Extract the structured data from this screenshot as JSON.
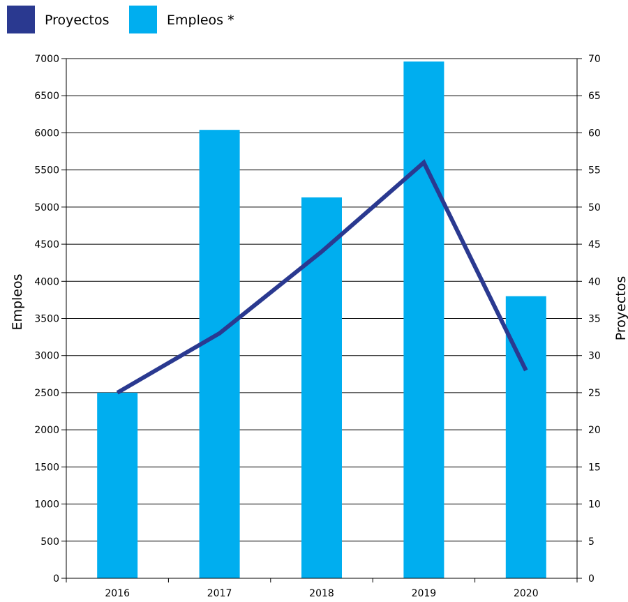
{
  "chart_data": {
    "type": "bar",
    "categories": [
      "2016",
      "2017",
      "2018",
      "2019",
      "2020"
    ],
    "series": [
      {
        "name": "Empleos *",
        "type": "bar",
        "axis": "left",
        "values": [
          2500,
          6040,
          5130,
          6960,
          3800
        ]
      },
      {
        "name": "Proyectos",
        "type": "line",
        "axis": "right",
        "values": [
          25,
          33,
          44,
          56,
          28
        ]
      }
    ],
    "legend": {
      "placement": "top-left",
      "items": [
        {
          "label": "Proyectos",
          "color": "#2a3990"
        },
        {
          "label": "Empleos *",
          "color": "#00aeef"
        }
      ]
    },
    "ylabel": "Empleos",
    "y2label": "Proyectos",
    "ylim": [
      0,
      7000
    ],
    "y2lim": [
      0,
      70
    ],
    "yticks": [
      "0",
      "500",
      "1000",
      "1500",
      "2000",
      "2500",
      "3000",
      "3500",
      "4000",
      "4500",
      "5000",
      "5500",
      "6000",
      "6500",
      "7000"
    ],
    "y2ticks": [
      "0",
      "5",
      "10",
      "15",
      "20",
      "25",
      "30",
      "35",
      "40",
      "45",
      "50",
      "55",
      "60",
      "65",
      "70"
    ],
    "grid": true,
    "colors": {
      "bar": "#00aeef",
      "line": "#2a3990",
      "grid": "#000000"
    }
  }
}
